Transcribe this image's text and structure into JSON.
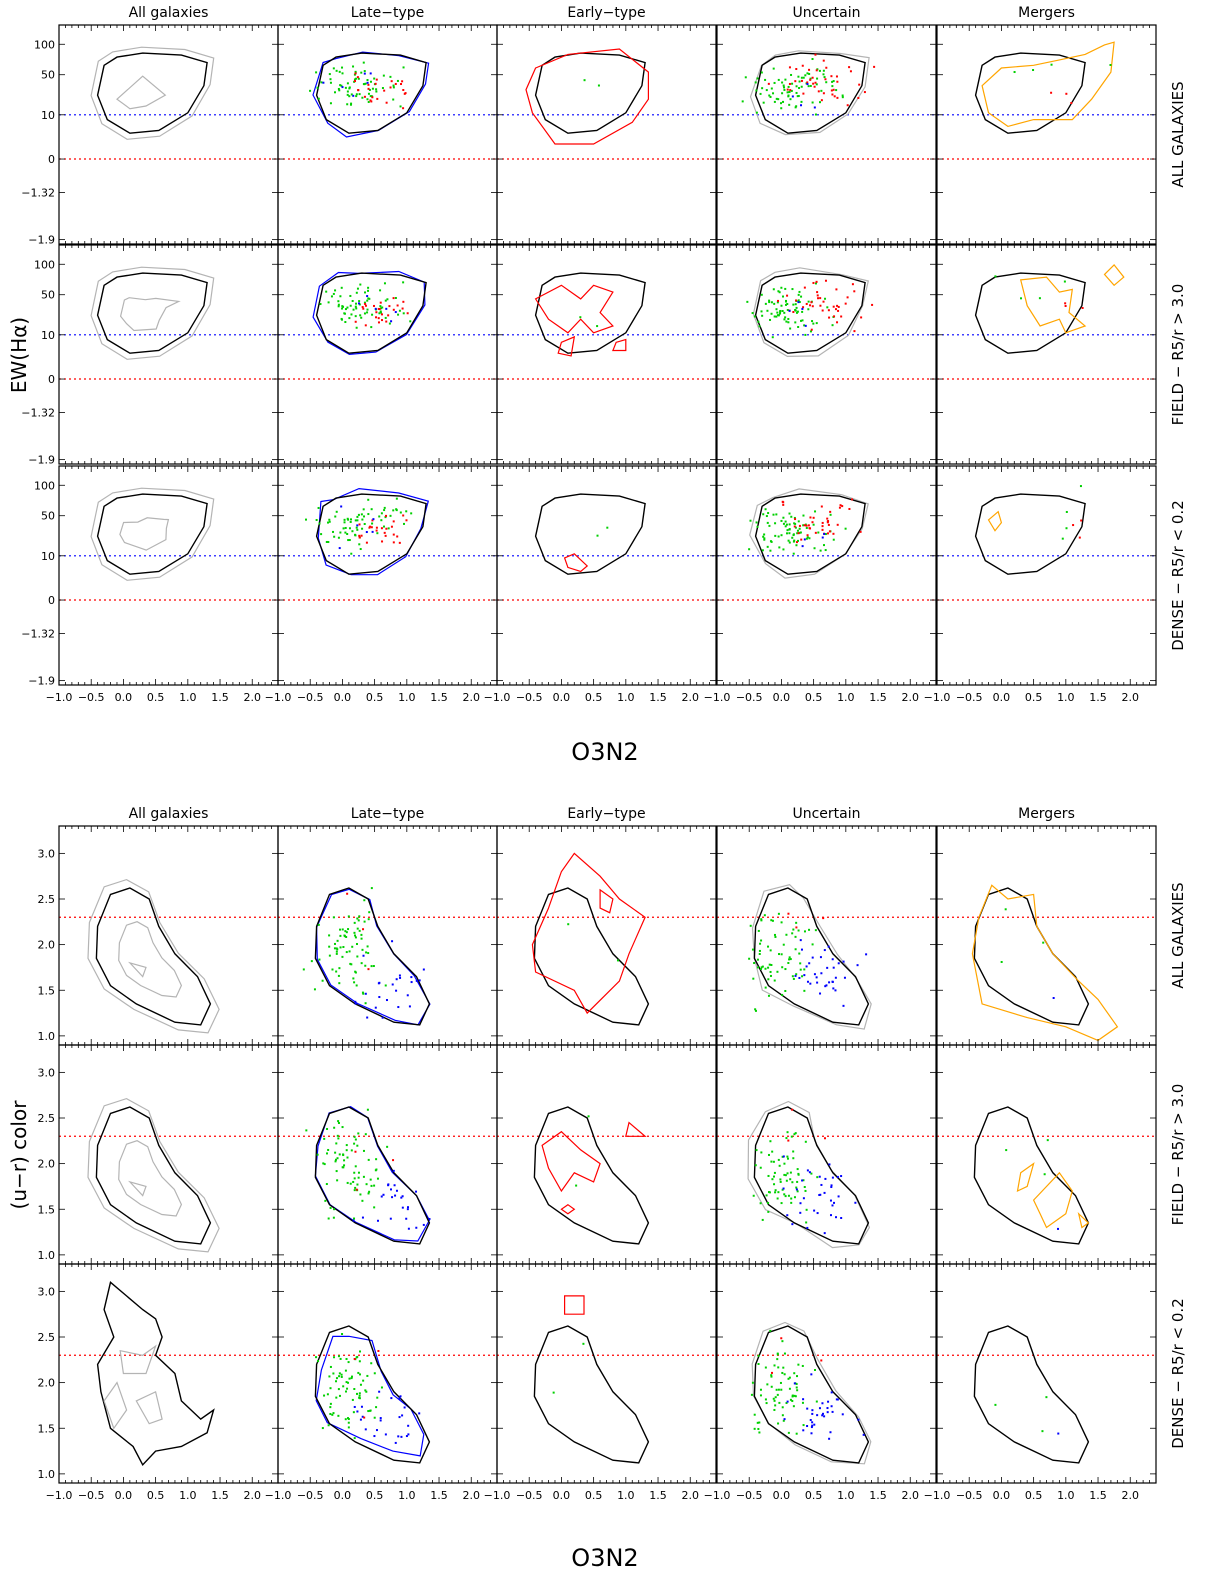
{
  "figure": {
    "columns": [
      "All galaxies",
      "Late−type",
      "Early−type",
      "Uncertain",
      "Mergers"
    ],
    "rows": [
      "ALL GALAXIES",
      "FIELD − R5/r > 3.0",
      "DENSE − R5/r < 0.2"
    ],
    "xlabel": "O3N2",
    "colors": {
      "reference": "#000000",
      "all": "#b4b4b4",
      "late": "#0000ff",
      "early": "#ff0000",
      "uncertain": "#b4b4b4",
      "mergers": "#ffa500",
      "points_green": "#00d000",
      "points_red": "#ff0000",
      "points_blue": "#0000ff",
      "hline_blue": "#0000ff",
      "hline_red": "#ff0000"
    }
  },
  "chart_data": [
    {
      "type": "scatter",
      "title": "",
      "xlabel": "O3N2",
      "ylabel": "EW(Hα)",
      "column_titles": [
        "All galaxies",
        "Late−type",
        "Early−type",
        "Uncertain",
        "Mergers"
      ],
      "row_titles": [
        "ALL GALAXIES",
        "FIELD − R5/r > 3.0",
        "DENSE − R5/r < 0.2"
      ],
      "xlim": [
        -1.0,
        2.4
      ],
      "xticks": [
        "−1.0",
        "−0.5",
        "0.0",
        "0.5",
        "1.0",
        "1.5",
        "2.0"
      ],
      "ytick_labels": [
        "100",
        "50",
        "10",
        "0",
        "−1.32",
        "−1.9"
      ],
      "reference_lines": [
        {
          "value_label": "10",
          "color": "blue",
          "style": "dotted"
        },
        {
          "value_label": "0",
          "color": "red",
          "style": "dotted"
        }
      ]
    },
    {
      "type": "scatter",
      "title": "",
      "xlabel": "O3N2",
      "ylabel": "(u−r) color",
      "column_titles": [
        "All galaxies",
        "Late−type",
        "Early−type",
        "Uncertain",
        "Mergers"
      ],
      "row_titles": [
        "ALL GALAXIES",
        "FIELD − R5/r > 3.0",
        "DENSE − R5/r < 0.2"
      ],
      "xlim": [
        -1.0,
        2.4
      ],
      "ylim": [
        0.9,
        3.3
      ],
      "xticks": [
        "−1.0",
        "−0.5",
        "0.0",
        "0.5",
        "1.0",
        "1.5",
        "2.0"
      ],
      "ytick_labels": [
        "1.0",
        "1.5",
        "2.0",
        "2.5",
        "3.0"
      ],
      "reference_lines": [
        {
          "value": 2.3,
          "color": "red",
          "style": "dotted"
        }
      ]
    }
  ]
}
